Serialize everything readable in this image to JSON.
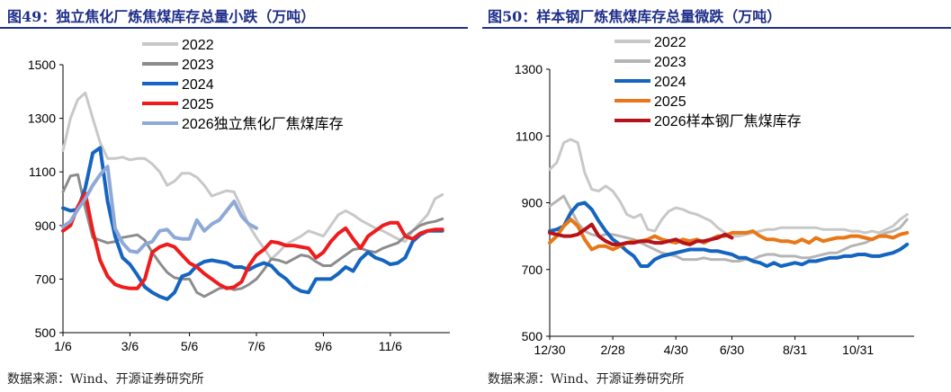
{
  "colors": {
    "title": "#1f2f8a",
    "axis": "#000000",
    "s2022": "#c8c8c8",
    "s2023": "#8c8c8c",
    "s2024": "#1565c0",
    "s2025_left": "#ee1c1c",
    "s2026_left": "#8ea9d8",
    "s2023_right": "#b5b5b5",
    "s2025_right": "#e87817",
    "s2026_right": "#b5121b"
  },
  "left": {
    "title": "图49：独立焦化厂炼焦煤库存总量小跌（万吨）",
    "source": "数据来源：Wind、开源证券研究所"
  },
  "right": {
    "title": "图50：样本钢厂炼焦煤库存总量微跌（万吨）",
    "source": "数据来源：Wind、开源证券研究所"
  },
  "chart_data": [
    {
      "type": "line",
      "title": "图49：独立焦化厂炼焦煤库存总量小跌（万吨）",
      "xlabel": "",
      "ylabel": "",
      "xlim": [
        0,
        52
      ],
      "ylim": [
        500,
        1500
      ],
      "yticks": [
        500,
        700,
        900,
        1100,
        1300,
        1500
      ],
      "xticks": [
        {
          "x": 0,
          "label": "1/6"
        },
        {
          "x": 9,
          "label": "3/6"
        },
        {
          "x": 17,
          "label": "5/6"
        },
        {
          "x": 26,
          "label": "7/6"
        },
        {
          "x": 35,
          "label": "9/6"
        },
        {
          "x": 44,
          "label": "11/6"
        }
      ],
      "legend_position": "top-center",
      "grid": false,
      "series": [
        {
          "name": "2022",
          "color": "#c8c8c8",
          "width": 3,
          "values": [
            1180,
            1300,
            1370,
            1395,
            1300,
            1210,
            1150,
            1150,
            1155,
            1145,
            1150,
            1150,
            1130,
            1100,
            1050,
            1065,
            1095,
            1095,
            1080,
            1050,
            1010,
            1020,
            1030,
            1025,
            965,
            900,
            855,
            815,
            775,
            800,
            830,
            845,
            860,
            880,
            870,
            860,
            900,
            940,
            955,
            940,
            920,
            905,
            890,
            880,
            865,
            850,
            840,
            880,
            910,
            940,
            1000,
            1015
          ]
        },
        {
          "name": "2023",
          "color": "#8c8c8c",
          "width": 3,
          "values": [
            1025,
            1085,
            1090,
            965,
            855,
            845,
            835,
            840,
            855,
            860,
            865,
            845,
            800,
            760,
            725,
            705,
            700,
            700,
            650,
            635,
            650,
            665,
            670,
            660,
            665,
            680,
            700,
            735,
            775,
            770,
            760,
            775,
            790,
            785,
            765,
            750,
            750,
            770,
            790,
            810,
            815,
            805,
            800,
            815,
            825,
            835,
            860,
            880,
            900,
            910,
            915,
            925
          ]
        },
        {
          "name": "2024",
          "color": "#1565c0",
          "width": 4,
          "values": [
            965,
            955,
            960,
            1040,
            1170,
            1190,
            990,
            860,
            780,
            755,
            715,
            670,
            650,
            635,
            625,
            650,
            710,
            720,
            750,
            765,
            770,
            765,
            760,
            745,
            745,
            735,
            750,
            760,
            750,
            720,
            700,
            670,
            655,
            650,
            700,
            700,
            700,
            720,
            745,
            730,
            775,
            800,
            780,
            770,
            755,
            760,
            780,
            840,
            865,
            880,
            880,
            880
          ]
        },
        {
          "name": "2025",
          "color": "#ee1c1c",
          "width": 4,
          "values": [
            880,
            900,
            970,
            1020,
            880,
            770,
            710,
            680,
            670,
            665,
            665,
            700,
            800,
            820,
            830,
            820,
            790,
            760,
            745,
            720,
            700,
            680,
            665,
            670,
            690,
            750,
            790,
            810,
            840,
            835,
            825,
            825,
            820,
            815,
            780,
            800,
            840,
            870,
            890,
            850,
            815,
            860,
            880,
            900,
            910,
            910,
            860,
            850,
            870,
            880,
            885,
            885
          ]
        },
        {
          "name": "2026独立焦化厂焦煤库存",
          "color": "#8ea9d8",
          "width": 4,
          "values": [
            895,
            915,
            960,
            1000,
            1050,
            1090,
            1120,
            890,
            835,
            805,
            800,
            830,
            840,
            880,
            885,
            855,
            850,
            850,
            920,
            880,
            905,
            920,
            955,
            990,
            935,
            905,
            890
          ]
        }
      ]
    },
    {
      "type": "line",
      "title": "图50：样本钢厂炼焦煤库存总量微跌（万吨）",
      "xlabel": "",
      "ylabel": "",
      "xlim": [
        0,
        52
      ],
      "ylim": [
        500,
        1300
      ],
      "yticks": [
        500,
        700,
        900,
        1100,
        1300
      ],
      "xticks": [
        {
          "x": 0,
          "label": "12/30"
        },
        {
          "x": 9,
          "label": "2/28"
        },
        {
          "x": 18,
          "label": "4/30"
        },
        {
          "x": 26,
          "label": "6/30"
        },
        {
          "x": 35,
          "label": "8/31"
        },
        {
          "x": 44,
          "label": "10/31"
        }
      ],
      "legend_position": "top-center",
      "grid": false,
      "series": [
        {
          "name": "2022",
          "color": "#c8c8c8",
          "width": 3,
          "values": [
            1000,
            1020,
            1080,
            1090,
            1080,
            990,
            940,
            935,
            950,
            935,
            905,
            865,
            855,
            865,
            820,
            815,
            850,
            875,
            885,
            880,
            870,
            865,
            855,
            845,
            825,
            810,
            800,
            800,
            805,
            810,
            815,
            820,
            820,
            825,
            825,
            825,
            825,
            825,
            825,
            820,
            820,
            820,
            820,
            815,
            815,
            810,
            815,
            810,
            820,
            830,
            850,
            865
          ]
        },
        {
          "name": "2023",
          "color": "#b5b5b5",
          "width": 3,
          "values": [
            890,
            905,
            920,
            880,
            840,
            815,
            805,
            800,
            805,
            805,
            800,
            795,
            790,
            780,
            770,
            760,
            750,
            745,
            740,
            730,
            730,
            730,
            735,
            730,
            730,
            730,
            725,
            725,
            730,
            730,
            740,
            745,
            745,
            740,
            740,
            740,
            735,
            735,
            740,
            745,
            750,
            750,
            760,
            770,
            775,
            780,
            790,
            800,
            810,
            815,
            825,
            850
          ]
        },
        {
          "name": "2024",
          "color": "#1565c0",
          "width": 4,
          "values": [
            815,
            820,
            830,
            870,
            895,
            900,
            880,
            845,
            815,
            790,
            775,
            755,
            740,
            710,
            710,
            730,
            740,
            745,
            750,
            755,
            760,
            760,
            760,
            755,
            755,
            750,
            745,
            735,
            735,
            725,
            720,
            710,
            720,
            710,
            715,
            720,
            715,
            725,
            725,
            730,
            735,
            735,
            740,
            740,
            745,
            745,
            740,
            740,
            745,
            750,
            760,
            775
          ]
        },
        {
          "name": "2025",
          "color": "#e87817",
          "width": 4,
          "values": [
            780,
            800,
            830,
            850,
            830,
            790,
            760,
            770,
            770,
            760,
            770,
            780,
            785,
            785,
            790,
            800,
            790,
            785,
            780,
            790,
            785,
            790,
            780,
            790,
            800,
            800,
            810,
            810,
            810,
            815,
            800,
            790,
            790,
            785,
            785,
            780,
            790,
            780,
            795,
            785,
            790,
            795,
            795,
            800,
            800,
            795,
            790,
            800,
            800,
            795,
            805,
            810
          ]
        },
        {
          "name": "2026样本钢厂焦煤库存",
          "color": "#b5121b",
          "width": 4,
          "values": [
            810,
            805,
            800,
            800,
            805,
            820,
            835,
            800,
            785,
            775,
            775,
            780,
            780,
            785,
            785,
            780,
            780,
            785,
            790,
            780,
            775,
            785,
            785,
            790,
            795,
            805,
            795
          ]
        }
      ]
    }
  ]
}
